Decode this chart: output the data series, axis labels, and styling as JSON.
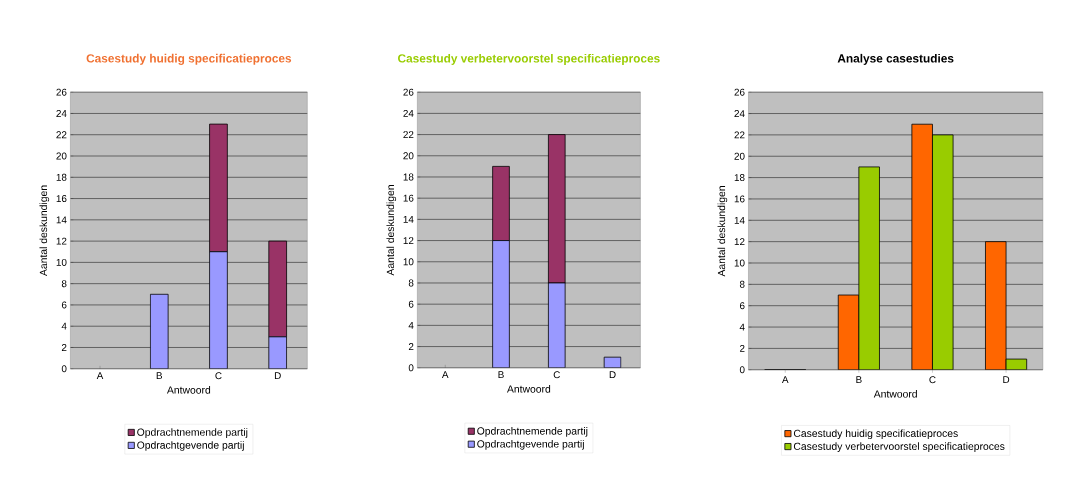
{
  "chart_data": [
    {
      "type": "bar",
      "title": "Casestudy huidig specificatieproces",
      "xlabel": "Antwoord",
      "ylabel": "Aantal deskundigen",
      "categories": [
        "A",
        "B",
        "C",
        "D"
      ],
      "stacked": true,
      "series": [
        {
          "name": "Opdrachtgevende partij",
          "color": "#9999ff",
          "values": [
            0,
            7,
            11,
            3
          ]
        },
        {
          "name": "Opdrachtnemende partij",
          "color": "#993366",
          "values": [
            0,
            0,
            12,
            9
          ]
        }
      ],
      "ylim": [
        0,
        26
      ],
      "yticks": [
        0,
        2,
        4,
        6,
        8,
        10,
        12,
        14,
        16,
        18,
        20,
        22,
        24,
        26
      ],
      "grid": "y",
      "legend": "bottom"
    },
    {
      "type": "bar",
      "title": "Casestudy verbetervoorstel specificatieproces",
      "xlabel": "Antwoord",
      "ylabel": "Aantal deskundigen",
      "categories": [
        "A",
        "B",
        "C",
        "D"
      ],
      "stacked": true,
      "series": [
        {
          "name": "Opdrachtgevende partij",
          "color": "#9999ff",
          "values": [
            0,
            12,
            8,
            1
          ]
        },
        {
          "name": "Opdrachtnemende partij",
          "color": "#993366",
          "values": [
            0,
            7,
            14,
            0
          ]
        }
      ],
      "ylim": [
        0,
        26
      ],
      "yticks": [
        0,
        2,
        4,
        6,
        8,
        10,
        12,
        14,
        16,
        18,
        20,
        22,
        24,
        26
      ],
      "grid": "y",
      "legend": "bottom"
    },
    {
      "type": "bar",
      "title": "Analyse casestudies",
      "xlabel": "Antwoord",
      "ylabel": "Aantal deskundigen",
      "categories": [
        "A",
        "B",
        "C",
        "D"
      ],
      "series": [
        {
          "name": "Casestudy huidig specificatieproces",
          "color": "#ff6600",
          "values": [
            0,
            7,
            23,
            12
          ]
        },
        {
          "name": "Casestudy verbetervoorstel specificatieproces",
          "color": "#99cc00",
          "values": [
            0,
            19,
            22,
            1
          ]
        }
      ],
      "ylim": [
        0,
        26
      ],
      "yticks": [
        0,
        2,
        4,
        6,
        8,
        10,
        12,
        14,
        16,
        18,
        20,
        22,
        24,
        26
      ],
      "grid": "y",
      "legend": "bottom"
    }
  ]
}
